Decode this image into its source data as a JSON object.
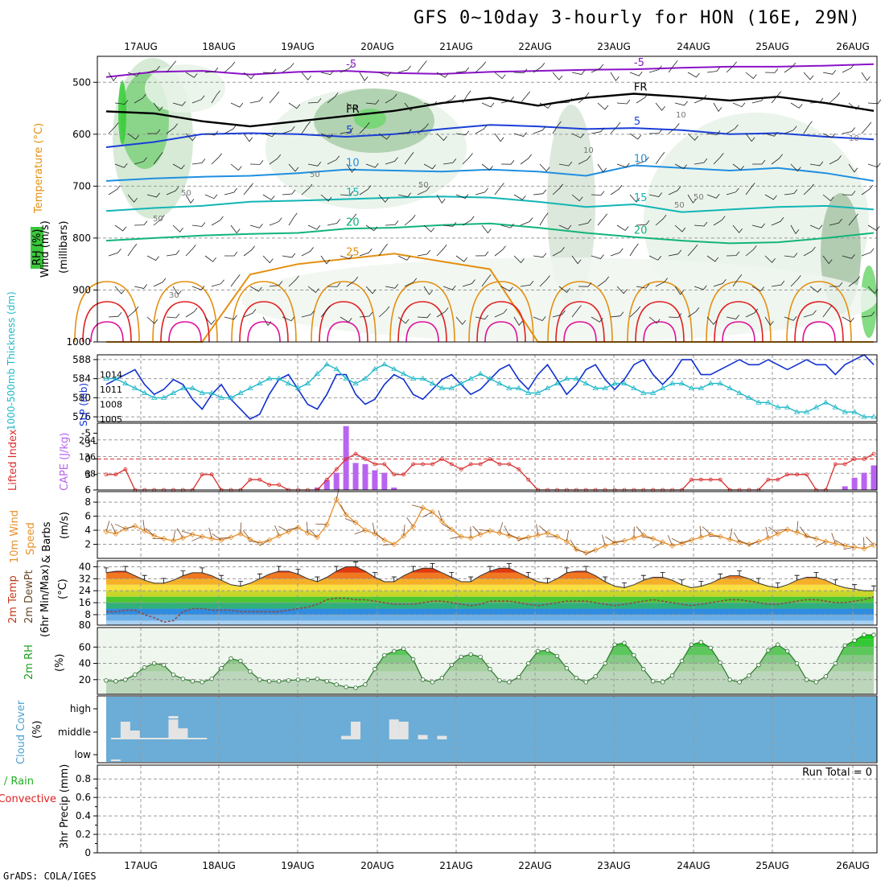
{
  "title": "GFS 0~10day 3-hourly for HON (16E, 29N)",
  "credit": "GrADS: COLA/IGES",
  "dates": [
    "17AUG",
    "18AUG",
    "19AUG",
    "20AUG",
    "21AUG",
    "22AUG",
    "23AUG",
    "24AUG",
    "25AUG",
    "26AUG"
  ],
  "colors": {
    "purple": "#8a12c8",
    "blue": "#1a3fd8",
    "sky": "#1f8fe0",
    "teal": "#12b5b5",
    "green_line": "#12b47a",
    "orange": "#e39012",
    "red": "#e02020",
    "magenta": "#e0109a",
    "cloud_bg": "#6badd6",
    "lifted": "#d93030",
    "cape": "#b964f0",
    "slp": "#1030d0",
    "thick": "#20b8c8",
    "wind_line": "#e8902a"
  },
  "chart_data": [
    {
      "panel": "upper_air",
      "type": "contour",
      "ylabel": "(millibars)",
      "legend_labels": [
        "Wind (m/s)",
        "Temperature (°C)",
        "RH (%)"
      ],
      "y_ticks": [
        500,
        600,
        700,
        800,
        900,
        1000
      ],
      "ylim": [
        1000,
        450
      ],
      "isotherms": [
        {
          "value": -5,
          "label": "-5",
          "p": [
            490,
            480,
            478,
            485,
            480,
            478,
            482,
            484,
            480,
            478,
            476,
            475,
            472,
            470,
            470,
            468,
            465
          ]
        },
        {
          "value": 0,
          "label": "FR",
          "p": [
            556,
            560,
            575,
            585,
            575,
            565,
            555,
            540,
            530,
            545,
            530,
            522,
            528,
            535,
            528,
            540,
            555
          ]
        },
        {
          "value": 5,
          "label": "5",
          "p": [
            625,
            615,
            600,
            598,
            600,
            605,
            600,
            590,
            582,
            585,
            590,
            588,
            592,
            600,
            598,
            605,
            610
          ]
        },
        {
          "value": 10,
          "label": "10",
          "p": [
            690,
            685,
            682,
            680,
            675,
            668,
            670,
            672,
            668,
            672,
            680,
            660,
            665,
            670,
            665,
            675,
            690
          ]
        },
        {
          "value": 15,
          "label": "15",
          "p": [
            748,
            742,
            738,
            730,
            728,
            725,
            722,
            720,
            722,
            730,
            740,
            735,
            750,
            745,
            740,
            738,
            745
          ]
        },
        {
          "value": 20,
          "label": "20",
          "p": [
            805,
            800,
            795,
            792,
            790,
            782,
            780,
            775,
            772,
            780,
            790,
            798,
            805,
            810,
            808,
            800,
            790
          ]
        },
        {
          "value": 25,
          "label": "25",
          "p": [
            1000,
            1000,
            1000,
            870,
            850,
            840,
            830,
            845,
            860,
            1000,
            1000,
            1000,
            1000,
            1000,
            1000,
            1000,
            1000
          ]
        }
      ],
      "contour_labels": [
        "50",
        "50",
        "50",
        "50",
        "50",
        "50",
        "10",
        "10",
        "10",
        "30"
      ]
    },
    {
      "panel": "slp_thickness",
      "type": "line",
      "ylabel_left": "1000-500mb Thickness (dm)",
      "ylabel_right": "SLP (mb)",
      "left_ticks": [
        576,
        580,
        584,
        588
      ],
      "right_ticks": [
        1005,
        1008,
        1011,
        1014
      ],
      "right_bottom_label": "1005",
      "slp": [
        1012,
        1013,
        1014,
        1015,
        1012,
        1010,
        1011,
        1013,
        1012,
        1009,
        1007,
        1010,
        1012,
        1009,
        1007,
        1005,
        1006,
        1010,
        1013,
        1014,
        1011,
        1008,
        1007,
        1010,
        1014,
        1014,
        1010,
        1008,
        1009,
        1012,
        1014,
        1013,
        1010,
        1009,
        1011,
        1013,
        1014,
        1012,
        1010,
        1011,
        1013,
        1015,
        1016,
        1013,
        1011,
        1014,
        1016,
        1013,
        1010,
        1012,
        1015,
        1016,
        1013,
        1011,
        1013,
        1016,
        1017,
        1014,
        1012,
        1014,
        1017,
        1017,
        1014,
        1014,
        1015,
        1016,
        1017,
        1016,
        1016,
        1017,
        1016,
        1015,
        1016,
        1017,
        1016,
        1016,
        1014,
        1016,
        1017,
        1018,
        1016
      ],
      "thickness": [
        584,
        584,
        583,
        582,
        581,
        580,
        580,
        581,
        582,
        582,
        581,
        581,
        580,
        580,
        581,
        582,
        583,
        584,
        584,
        583,
        582,
        583,
        585,
        587,
        586,
        584,
        583,
        584,
        586,
        587,
        586,
        585,
        584,
        584,
        583,
        582,
        582,
        583,
        584,
        585,
        584,
        583,
        582,
        582,
        581,
        581,
        582,
        583,
        584,
        584,
        583,
        582,
        582,
        583,
        583,
        582,
        581,
        581,
        582,
        583,
        583,
        582,
        582,
        583,
        583,
        582,
        581,
        580,
        579,
        579,
        578,
        578,
        577,
        577,
        578,
        579,
        578,
        577,
        577,
        576,
        576
      ]
    },
    {
      "panel": "lifted_cape",
      "type": "line+bar",
      "ylabel_left": "Lifted Index",
      "ylabel_right": "CAPE (J/kg)",
      "left_ticks": [
        "-5",
        "-3",
        "0",
        "3",
        "6"
      ],
      "right_ticks": [
        68,
        136,
        204
      ],
      "lifted_index": [
        3,
        3,
        2,
        6,
        6,
        6,
        6,
        6,
        6,
        6,
        3,
        3,
        6,
        6,
        6,
        4,
        4,
        5,
        5,
        6,
        6,
        6,
        6,
        4,
        2,
        0,
        -1,
        0,
        1,
        1,
        3,
        3,
        1,
        1,
        1,
        0,
        1,
        2,
        1,
        1,
        0,
        1,
        1,
        2,
        4,
        6,
        6,
        6,
        6,
        6,
        6,
        6,
        6,
        6,
        6,
        6,
        6,
        6,
        6,
        6,
        6,
        4,
        4,
        4,
        4,
        6,
        6,
        6,
        6,
        4,
        4,
        3,
        3,
        3,
        6,
        6,
        1,
        1,
        0,
        0,
        -1
      ],
      "cape": [
        0,
        0,
        0,
        0,
        0,
        0,
        0,
        0,
        0,
        0,
        0,
        0,
        0,
        0,
        0,
        0,
        0,
        0,
        0,
        0,
        0,
        0,
        10,
        40,
        70,
        260,
        110,
        105,
        80,
        70,
        10,
        0,
        0,
        0,
        0,
        0,
        0,
        0,
        0,
        0,
        0,
        0,
        0,
        0,
        0,
        0,
        0,
        0,
        0,
        0,
        0,
        0,
        0,
        0,
        0,
        0,
        0,
        0,
        0,
        0,
        0,
        0,
        0,
        0,
        0,
        0,
        0,
        0,
        0,
        0,
        0,
        0,
        0,
        0,
        0,
        0,
        0,
        15,
        50,
        70,
        100
      ]
    },
    {
      "panel": "wind10m",
      "type": "line",
      "ylabel": "10m Wind Speed & Barbs (m/s)",
      "y_ticks": [
        2,
        4,
        6,
        8
      ],
      "speed": [
        3.8,
        3.5,
        4.2,
        4.6,
        3.9,
        3.2,
        2.8,
        2.5,
        2.9,
        3.4,
        3.1,
        2.8,
        2.6,
        3.0,
        3.5,
        2.7,
        2.2,
        2.6,
        3.2,
        3.8,
        4.4,
        3.6,
        3.0,
        4.8,
        8.4,
        6.2,
        5.1,
        4.0,
        3.5,
        2.6,
        2.0,
        3.2,
        4.5,
        7.2,
        6.6,
        5.3,
        4.1,
        3.1,
        2.9,
        3.4,
        3.9,
        3.6,
        3.2,
        2.8,
        3.0,
        3.3,
        3.6,
        3.1,
        2.4,
        1.3,
        0.8,
        1.2,
        1.8,
        2.2,
        2.5,
        2.9,
        3.3,
        2.8,
        2.3,
        1.8,
        2.1,
        2.6,
        3.0,
        3.4,
        3.1,
        2.7,
        2.3,
        2.0,
        2.4,
        2.9,
        3.5,
        4.1,
        3.7,
        3.2,
        2.8,
        2.4,
        2.1,
        1.8,
        1.6,
        1.4,
        1.9
      ]
    },
    {
      "panel": "temp2m",
      "type": "area",
      "ylabel": "2m Temp 2m DewPt (6hr Min/Max) (°C)",
      "y_ticks": [
        8,
        16,
        24,
        32,
        40
      ],
      "bottom_label": "80",
      "temp": [
        36,
        37,
        37,
        34,
        31,
        29,
        29,
        31,
        34,
        36,
        36,
        34,
        31,
        28,
        27,
        29,
        32,
        35,
        37,
        37,
        35,
        32,
        30,
        33,
        37,
        40,
        40,
        37,
        33,
        30,
        30,
        34,
        37,
        39,
        39,
        36,
        33,
        30,
        30,
        34,
        37,
        39,
        39,
        36,
        33,
        30,
        29,
        32,
        36,
        37,
        37,
        34,
        30,
        27,
        26,
        28,
        31,
        33,
        33,
        31,
        28,
        26,
        27,
        29,
        32,
        34,
        34,
        32,
        29,
        27,
        26,
        28,
        31,
        33,
        33,
        31,
        28,
        26,
        25,
        24,
        24
      ],
      "dewpoint": [
        10,
        10,
        11,
        11,
        8,
        6,
        3,
        4,
        10,
        12,
        12,
        11,
        11,
        11,
        10,
        10,
        10,
        10,
        10,
        11,
        12,
        13,
        15,
        18,
        19,
        19,
        18,
        18,
        17,
        16,
        15,
        15,
        15,
        16,
        17,
        17,
        16,
        15,
        14,
        15,
        17,
        17,
        17,
        16,
        15,
        14,
        15,
        16,
        17,
        17,
        17,
        16,
        15,
        14,
        15,
        16,
        17,
        18,
        17,
        16,
        15,
        14,
        15,
        16,
        17,
        18,
        18,
        17,
        16,
        15,
        15,
        16,
        17,
        18,
        18,
        17,
        16,
        16,
        17,
        18,
        20
      ]
    },
    {
      "panel": "rh2m",
      "type": "area",
      "ylabel": "2m RH (%)",
      "y_ticks": [
        20,
        40,
        60
      ],
      "rh": [
        19,
        18,
        20,
        26,
        35,
        40,
        38,
        26,
        21,
        18,
        17,
        21,
        34,
        46,
        43,
        30,
        20,
        18,
        18,
        19,
        20,
        20,
        21,
        18,
        14,
        11,
        10,
        14,
        33,
        50,
        55,
        58,
        45,
        20,
        17,
        22,
        38,
        48,
        51,
        48,
        33,
        19,
        17,
        23,
        40,
        55,
        56,
        49,
        34,
        22,
        17,
        24,
        40,
        63,
        65,
        50,
        33,
        18,
        17,
        25,
        43,
        63,
        66,
        59,
        41,
        20,
        17,
        25,
        38,
        56,
        63,
        55,
        40,
        20,
        17,
        24,
        40,
        62,
        68,
        75,
        75
      ]
    },
    {
      "panel": "cloud",
      "type": "bar",
      "ylabel": "Cloud Cover (%)",
      "y_ticks": [
        "high",
        "middle",
        "low"
      ],
      "low": [
        0,
        0,
        0,
        0,
        0
      ],
      "middle": [
        20,
        40,
        45,
        10,
        25,
        8
      ],
      "high": [
        3
      ]
    },
    {
      "panel": "precip",
      "type": "bar",
      "ylabel": "3hr Precip (mm)",
      "ylabel_extra": [
        "Total / Rain",
        "Convective"
      ],
      "y_ticks": [
        "0",
        "0.2",
        "0.4",
        "0.6",
        "0.8"
      ],
      "run_total": "Run Total = 0",
      "values": []
    }
  ]
}
